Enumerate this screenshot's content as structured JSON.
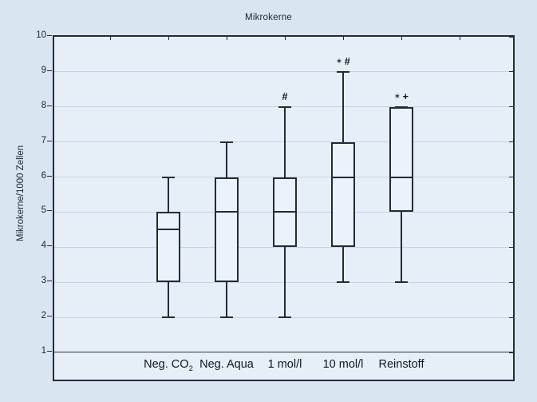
{
  "page": {
    "background": "#d9e6f2"
  },
  "chart_data": {
    "type": "boxplot",
    "title": "Mikrokerne",
    "ylabel": "Mikrokerne/1000 Zellen",
    "ylim": [
      1,
      10
    ],
    "yticks": [
      1,
      2,
      3,
      4,
      5,
      6,
      7,
      8,
      9,
      10
    ],
    "grid": "horizontal-light",
    "legend": "none",
    "categories": [
      "Neg. CO₂",
      "Neg. Aqua",
      "1 mol/l",
      "10 mol/l",
      "Reinstoff"
    ],
    "series": [
      {
        "label_main": "Neg. CO",
        "label_sub": "2",
        "whisker_low": 2,
        "q1": 3,
        "median": 4.5,
        "q3": 5,
        "whisker_high": 6,
        "annotation_star": false,
        "annotation_mark": ""
      },
      {
        "label_main": "Neg. Aqua",
        "label_sub": "",
        "whisker_low": 2,
        "q1": 3,
        "median": 5,
        "q3": 6,
        "whisker_high": 7,
        "annotation_star": false,
        "annotation_mark": ""
      },
      {
        "label_main": "1 mol/l",
        "label_sub": "",
        "whisker_low": 2,
        "q1": 4,
        "median": 5,
        "q3": 6,
        "whisker_high": 8,
        "annotation_star": false,
        "annotation_mark": "#"
      },
      {
        "label_main": "10 mol/l",
        "label_sub": "",
        "whisker_low": 3,
        "q1": 4,
        "median": 6,
        "q3": 7,
        "whisker_high": 9,
        "annotation_star": true,
        "annotation_mark": "#"
      },
      {
        "label_main": "Reinstoff",
        "label_sub": "",
        "whisker_low": 3,
        "q1": 5,
        "median": 6,
        "q3": 8,
        "whisker_high": 8,
        "annotation_star": true,
        "annotation_mark": "+"
      }
    ],
    "annotation_star_glyph": "∗",
    "colors": {
      "page_bg": "#d9e6f2",
      "plot_bg": "#e6eff8",
      "box_fill": "#ebf2f9",
      "line": "#232b38",
      "grid_line": "#c5d3e1",
      "text": "#1b2430"
    }
  }
}
